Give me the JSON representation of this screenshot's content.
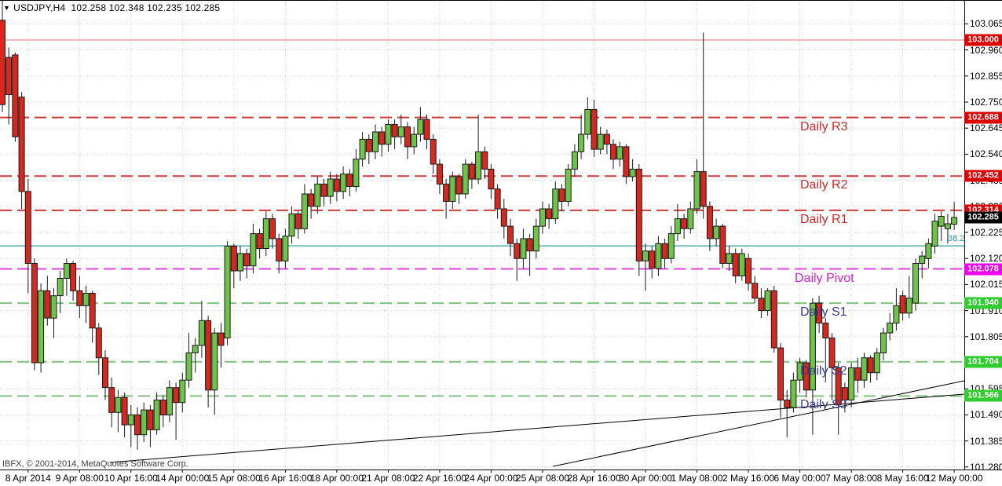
{
  "header": {
    "symbol": "USDJPY,H4",
    "open": "102.258",
    "high": "102.348",
    "low": "102.235",
    "close": "102.285",
    "dropdown_icon": "▼"
  },
  "footer": {
    "copyright": "IBFX, © 2001-2014, MetaQuotes Software Corp."
  },
  "colors": {
    "background": "#ffffff",
    "grid": "#d4d4d4",
    "axis_line": "#000000",
    "candle_up_fill": "#6fc24a",
    "candle_down_fill": "#d5281e",
    "candle_border": "#1a1a1a",
    "wick": "#1a1a1a",
    "resistance_line": "#cc3a3a",
    "resistance_text": "#cc2929",
    "pivot_line": "#e040e0",
    "pivot_text": "#d322d3",
    "support_line": "#82c082",
    "support_text": "#3a3a90",
    "fib_line": "#2fa0a0",
    "fib_text": "#2fa0a0",
    "round_level_line": "#e57373",
    "badge_red": "#dd0000",
    "badge_green": "#2ecc2e",
    "badge_magenta": "#ee00ee",
    "badge_black": "#000000",
    "trendline": "#000000"
  },
  "chart_data": {
    "type": "candlestick",
    "symbol": "USDJPY",
    "timeframe": "H4",
    "current_bar_ohlc": {
      "open": 102.258,
      "high": 102.348,
      "low": 102.235,
      "close": 102.285
    },
    "current_price": 102.285,
    "ylim": [
      101.27,
      103.158
    ],
    "y_tick_step": 0.105,
    "y_tick_labels": [
      "103.065",
      "102.960",
      "102.855",
      "102.750",
      "102.645",
      "102.540",
      "102.435",
      "102.330",
      "102.225",
      "102.120",
      "102.015",
      "101.910",
      "101.805",
      "101.700",
      "101.595",
      "101.490",
      "101.385",
      "101.280"
    ],
    "x_labels": [
      "8 Apr 2014",
      "9 Apr 08:00",
      "10 Apr 16:00",
      "14 Apr 00:00",
      "15 Apr 08:00",
      "16 Apr 16:00",
      "18 Apr 00:00",
      "21 Apr 08:00",
      "22 Apr 16:00",
      "24 Apr 00:00",
      "25 Apr 08:00",
      "28 Apr 16:00",
      "30 Apr 00:00",
      "1 May 08:00",
      "2 May 16:00",
      "6 May 00:00",
      "7 May 08:00",
      "8 May 16:00",
      "12 May 00:00"
    ],
    "grid": {
      "first_tick_bar": 4,
      "tick_every_bars": 8,
      "visible": true
    },
    "levels": [
      {
        "name": "",
        "price": 103.0,
        "style": "solid",
        "role": "round",
        "badge": "103.000",
        "badge_color": "badge_red",
        "line_color": "round_level_line",
        "label_color": null,
        "label_x": null
      },
      {
        "name": "Daily R3",
        "price": 102.688,
        "style": "dashed",
        "role": "resistance",
        "badge": "102.688",
        "badge_color": "badge_red",
        "line_color": "resistance_line",
        "label_color": "resistance_text",
        "label_x": 1019
      },
      {
        "name": "Daily R2",
        "price": 102.452,
        "style": "dashed",
        "role": "resistance",
        "badge": "102.452",
        "badge_color": "badge_red",
        "line_color": "resistance_line",
        "label_color": "resistance_text",
        "label_x": 1019
      },
      {
        "name": "Daily R1",
        "price": 102.314,
        "style": "dashed",
        "role": "resistance",
        "badge": "102.314",
        "badge_color": "badge_red",
        "line_color": "resistance_line",
        "label_color": "resistance_text",
        "label_x": 1019
      },
      {
        "name": "Daily Pivot",
        "price": 102.078,
        "style": "dashed",
        "role": "pivot",
        "badge": "102.078",
        "badge_color": "badge_magenta",
        "line_color": "pivot_line",
        "label_color": "pivot_text",
        "label_x": 1012
      },
      {
        "name": "Daily S1",
        "price": 101.94,
        "style": "dashed",
        "role": "support",
        "badge": "101.940",
        "badge_color": "badge_green",
        "line_color": "support_line",
        "label_color": "support_text",
        "label_x": 1019
      },
      {
        "name": "Daily S2",
        "price": 101.704,
        "style": "dashed",
        "role": "support",
        "badge": "101.704",
        "badge_color": "badge_green",
        "line_color": "support_line",
        "label_color": "support_text",
        "label_x": 1019
      },
      {
        "name": "Daily S3",
        "price": 101.566,
        "style": "dashed",
        "role": "support",
        "badge": "101.566",
        "badge_color": "badge_green",
        "line_color": "support_line",
        "label_color": "support_text",
        "label_x": 1019
      }
    ],
    "fibonacci": {
      "label": "38.2",
      "price": 102.171,
      "label_x": 1207
    },
    "trendlines": [
      {
        "x1": 140,
        "y1": 588,
        "x2": 1228,
        "y2": 501
      },
      {
        "x1": 704,
        "y1": 593,
        "x2": 1228,
        "y2": 484
      }
    ],
    "candles": [
      [
        103.08,
        103.16,
        102.71,
        102.74
      ],
      [
        102.93,
        102.97,
        102.66,
        102.78
      ],
      [
        102.94,
        102.95,
        102.59,
        102.61
      ],
      [
        102.77,
        102.79,
        102.32,
        102.39
      ],
      [
        102.39,
        102.44,
        101.98,
        102.1
      ],
      [
        102.1,
        102.12,
        101.67,
        101.7
      ],
      [
        101.7,
        102.02,
        101.66,
        101.99
      ],
      [
        101.99,
        102.05,
        101.85,
        101.88
      ],
      [
        101.88,
        102.0,
        101.8,
        101.97
      ],
      [
        101.97,
        102.07,
        101.9,
        102.04
      ],
      [
        102.04,
        102.12,
        101.97,
        102.1
      ],
      [
        102.1,
        102.11,
        101.95,
        101.99
      ],
      [
        101.99,
        102.05,
        101.88,
        101.93
      ],
      [
        101.93,
        102.01,
        101.86,
        101.98
      ],
      [
        101.98,
        101.99,
        101.78,
        101.84
      ],
      [
        101.84,
        101.86,
        101.65,
        101.72
      ],
      [
        101.72,
        101.75,
        101.55,
        101.6
      ],
      [
        101.6,
        101.64,
        101.44,
        101.5
      ],
      [
        101.5,
        101.59,
        101.42,
        101.56
      ],
      [
        101.56,
        101.58,
        101.4,
        101.45
      ],
      [
        101.45,
        101.53,
        101.36,
        101.49
      ],
      [
        101.49,
        101.52,
        101.35,
        101.41
      ],
      [
        101.41,
        101.54,
        101.38,
        101.51
      ],
      [
        101.51,
        101.53,
        101.36,
        101.43
      ],
      [
        101.43,
        101.58,
        101.41,
        101.55
      ],
      [
        101.55,
        101.57,
        101.44,
        101.49
      ],
      [
        101.49,
        101.63,
        101.46,
        101.6
      ],
      [
        101.6,
        101.62,
        101.39,
        101.54
      ],
      [
        101.54,
        101.66,
        101.5,
        101.63
      ],
      [
        101.63,
        101.82,
        101.6,
        101.74
      ],
      [
        101.74,
        101.8,
        101.66,
        101.77
      ],
      [
        101.77,
        101.95,
        101.72,
        101.87
      ],
      [
        101.87,
        101.89,
        101.52,
        101.59
      ],
      [
        101.59,
        101.84,
        101.49,
        101.82
      ],
      [
        101.82,
        101.86,
        101.68,
        101.77
      ],
      [
        101.8,
        102.19,
        101.77,
        102.17
      ],
      [
        102.17,
        102.18,
        102.0,
        102.07
      ],
      [
        102.07,
        102.17,
        102.03,
        102.14
      ],
      [
        102.14,
        102.16,
        102.04,
        102.09
      ],
      [
        102.09,
        102.26,
        102.06,
        102.22
      ],
      [
        102.22,
        102.24,
        102.12,
        102.16
      ],
      [
        102.16,
        102.31,
        102.13,
        102.28
      ],
      [
        102.28,
        102.3,
        102.16,
        102.2
      ],
      [
        102.2,
        102.22,
        102.06,
        102.11
      ],
      [
        102.11,
        102.24,
        102.08,
        102.21
      ],
      [
        102.21,
        102.33,
        102.18,
        102.3
      ],
      [
        102.3,
        102.31,
        102.2,
        102.24
      ],
      [
        102.24,
        102.42,
        102.22,
        102.38
      ],
      [
        102.38,
        102.4,
        102.28,
        102.33
      ],
      [
        102.33,
        102.45,
        102.3,
        102.42
      ],
      [
        102.42,
        102.44,
        102.33,
        102.37
      ],
      [
        102.37,
        102.47,
        102.34,
        102.44
      ],
      [
        102.44,
        102.46,
        102.35,
        102.39
      ],
      [
        102.39,
        102.49,
        102.36,
        102.46
      ],
      [
        102.46,
        102.48,
        102.37,
        102.41
      ],
      [
        102.41,
        102.56,
        102.39,
        102.52
      ],
      [
        102.52,
        102.63,
        102.49,
        102.6
      ],
      [
        102.6,
        102.62,
        102.5,
        102.55
      ],
      [
        102.55,
        102.66,
        102.52,
        102.63
      ],
      [
        102.63,
        102.65,
        102.53,
        102.58
      ],
      [
        102.58,
        102.68,
        102.55,
        102.66
      ],
      [
        102.66,
        102.68,
        102.56,
        102.61
      ],
      [
        102.61,
        102.7,
        102.58,
        102.65
      ],
      [
        102.65,
        102.67,
        102.52,
        102.57
      ],
      [
        102.57,
        102.65,
        102.54,
        102.62
      ],
      [
        102.62,
        102.73,
        102.59,
        102.68
      ],
      [
        102.68,
        102.7,
        102.56,
        102.6
      ],
      [
        102.6,
        102.62,
        102.46,
        102.5
      ],
      [
        102.5,
        102.52,
        102.38,
        102.42
      ],
      [
        102.42,
        102.44,
        102.28,
        102.35
      ],
      [
        102.35,
        102.47,
        102.32,
        102.45
      ],
      [
        102.45,
        102.46,
        102.34,
        102.38
      ],
      [
        102.38,
        102.52,
        102.36,
        102.5
      ],
      [
        102.5,
        102.51,
        102.4,
        102.44
      ],
      [
        102.44,
        102.7,
        102.42,
        102.55
      ],
      [
        102.55,
        102.57,
        102.44,
        102.48
      ],
      [
        102.48,
        102.5,
        102.36,
        102.4
      ],
      [
        102.4,
        102.42,
        102.28,
        102.32
      ],
      [
        102.32,
        102.36,
        102.2,
        102.25
      ],
      [
        102.25,
        102.28,
        102.13,
        102.18
      ],
      [
        102.18,
        102.2,
        102.03,
        102.12
      ],
      [
        102.12,
        102.24,
        102.08,
        102.2
      ],
      [
        102.2,
        102.22,
        102.05,
        102.15
      ],
      [
        102.15,
        102.28,
        102.12,
        102.25
      ],
      [
        102.25,
        102.35,
        102.22,
        102.32
      ],
      [
        102.32,
        102.34,
        102.24,
        102.28
      ],
      [
        102.28,
        102.43,
        102.26,
        102.4
      ],
      [
        102.4,
        102.42,
        102.31,
        102.35
      ],
      [
        102.35,
        102.5,
        102.33,
        102.48
      ],
      [
        102.48,
        102.58,
        102.45,
        102.55
      ],
      [
        102.55,
        102.7,
        102.52,
        102.62
      ],
      [
        102.62,
        102.77,
        102.6,
        102.72
      ],
      [
        102.72,
        102.76,
        102.53,
        102.56
      ],
      [
        102.56,
        102.65,
        102.54,
        102.62
      ],
      [
        102.62,
        102.64,
        102.54,
        102.58
      ],
      [
        102.58,
        102.6,
        102.48,
        102.52
      ],
      [
        102.52,
        102.59,
        102.49,
        102.57
      ],
      [
        102.57,
        102.58,
        102.42,
        102.45
      ],
      [
        102.45,
        102.52,
        102.43,
        102.48
      ],
      [
        102.48,
        102.5,
        102.05,
        102.11
      ],
      [
        102.11,
        102.18,
        101.99,
        102.15
      ],
      [
        102.15,
        102.17,
        102.04,
        102.08
      ],
      [
        102.08,
        102.21,
        102.05,
        102.18
      ],
      [
        102.18,
        102.2,
        102.08,
        102.12
      ],
      [
        102.12,
        102.25,
        102.1,
        102.22
      ],
      [
        102.22,
        102.34,
        102.19,
        102.28
      ],
      [
        102.28,
        102.3,
        102.2,
        102.24
      ],
      [
        102.24,
        102.35,
        102.22,
        102.32
      ],
      [
        102.32,
        102.52,
        102.3,
        102.47
      ],
      [
        102.47,
        103.03,
        102.28,
        102.33
      ],
      [
        102.33,
        102.35,
        102.15,
        102.2
      ],
      [
        102.2,
        102.28,
        102.17,
        102.25
      ],
      [
        102.25,
        102.26,
        102.08,
        102.1
      ],
      [
        102.1,
        102.17,
        102.07,
        102.14
      ],
      [
        102.14,
        102.16,
        102.02,
        102.05
      ],
      [
        102.05,
        102.16,
        102.03,
        102.14
      ],
      [
        102.12,
        102.14,
        101.99,
        102.02
      ],
      [
        102.02,
        102.05,
        101.94,
        101.96
      ],
      [
        101.96,
        102.0,
        101.88,
        101.91
      ],
      [
        101.91,
        102.0,
        101.89,
        101.99
      ],
      [
        101.99,
        102.01,
        101.74,
        101.76
      ],
      [
        101.76,
        101.78,
        101.48,
        101.55
      ],
      [
        101.55,
        101.59,
        101.4,
        101.52
      ],
      [
        101.52,
        101.66,
        101.5,
        101.63
      ],
      [
        101.63,
        101.72,
        101.58,
        101.7
      ],
      [
        101.7,
        101.71,
        101.56,
        101.59
      ],
      [
        101.59,
        101.96,
        101.41,
        101.94
      ],
      [
        101.94,
        101.97,
        101.82,
        101.86
      ],
      [
        101.86,
        101.88,
        101.62,
        101.8
      ],
      [
        101.8,
        101.82,
        101.55,
        101.68
      ],
      [
        101.68,
        101.7,
        101.41,
        101.53
      ],
      [
        101.6,
        101.62,
        101.5,
        101.55
      ],
      [
        101.55,
        101.7,
        101.52,
        101.68
      ],
      [
        101.68,
        101.72,
        101.58,
        101.63
      ],
      [
        101.63,
        101.74,
        101.6,
        101.72
      ],
      [
        101.72,
        101.73,
        101.62,
        101.66
      ],
      [
        101.66,
        101.76,
        101.63,
        101.74
      ],
      [
        101.74,
        101.84,
        101.71,
        101.82
      ],
      [
        101.82,
        101.9,
        101.79,
        101.86
      ],
      [
        101.86,
        102.0,
        101.83,
        101.93
      ],
      [
        101.97,
        101.99,
        101.87,
        101.9
      ],
      [
        101.9,
        102.05,
        101.88,
        101.96
      ],
      [
        101.94,
        102.12,
        101.91,
        102.1
      ],
      [
        102.1,
        102.15,
        102.04,
        102.13
      ],
      [
        102.12,
        102.2,
        102.08,
        102.18
      ],
      [
        102.17,
        102.3,
        102.14,
        102.27
      ],
      [
        102.25,
        102.31,
        102.19,
        102.29
      ],
      [
        102.24,
        102.3,
        102.18,
        102.26
      ],
      [
        102.258,
        102.348,
        102.235,
        102.285
      ]
    ]
  }
}
